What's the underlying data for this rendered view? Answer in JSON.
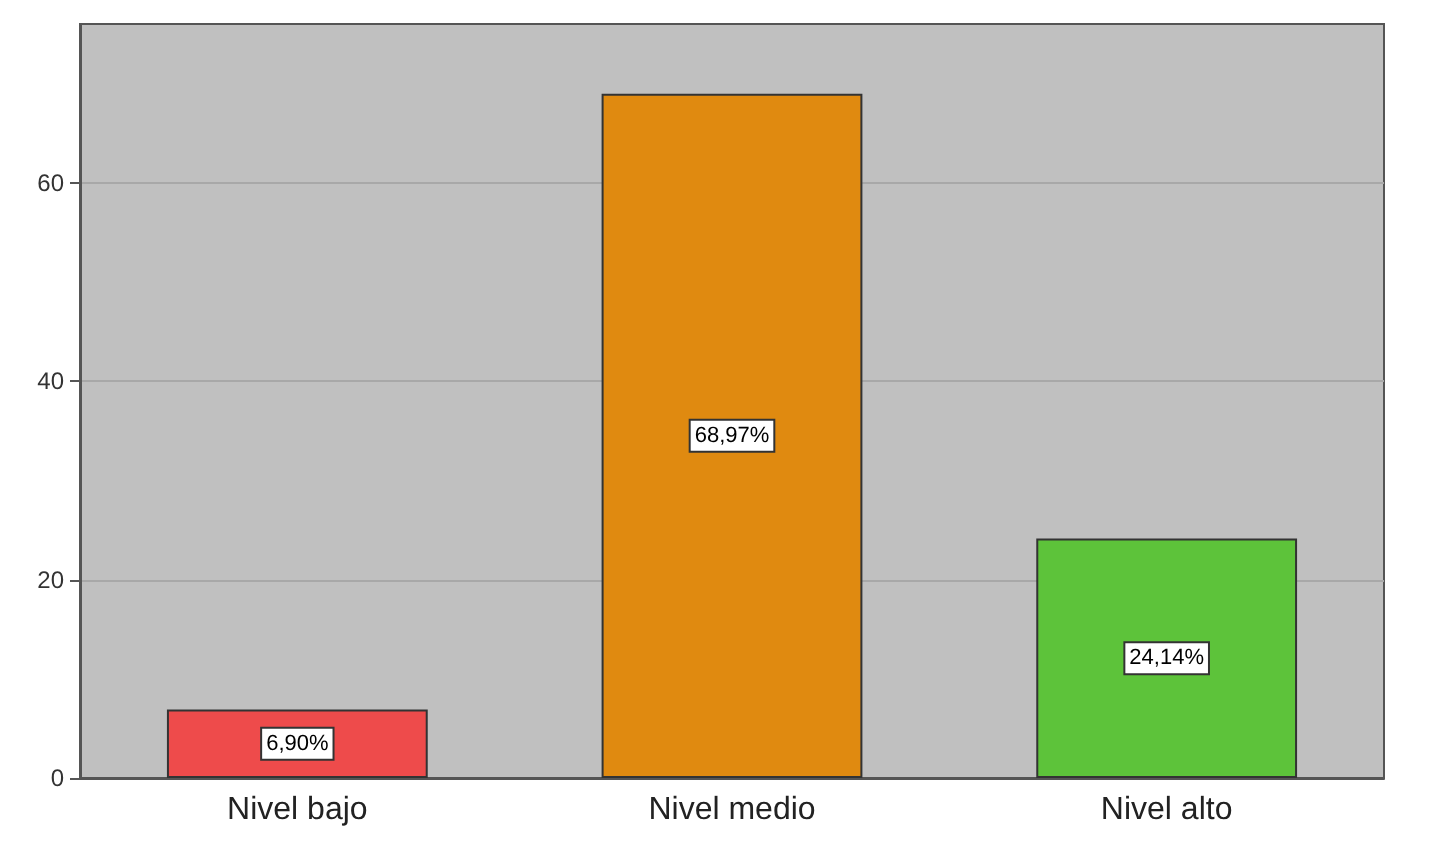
{
  "chart_data": {
    "type": "bar",
    "categories": [
      "Nivel bajo",
      "Nivel medio",
      "Nivel alto"
    ],
    "values": [
      6.9,
      68.97,
      24.14
    ],
    "colors": [
      "#ee4b4b",
      "#e08a10",
      "#5dc33a"
    ],
    "value_labels": [
      "6,90%",
      "68,97%",
      "24,14%"
    ],
    "ylim": [
      0,
      76
    ],
    "yticks": [
      0,
      20,
      40,
      60
    ],
    "grid": "y"
  }
}
